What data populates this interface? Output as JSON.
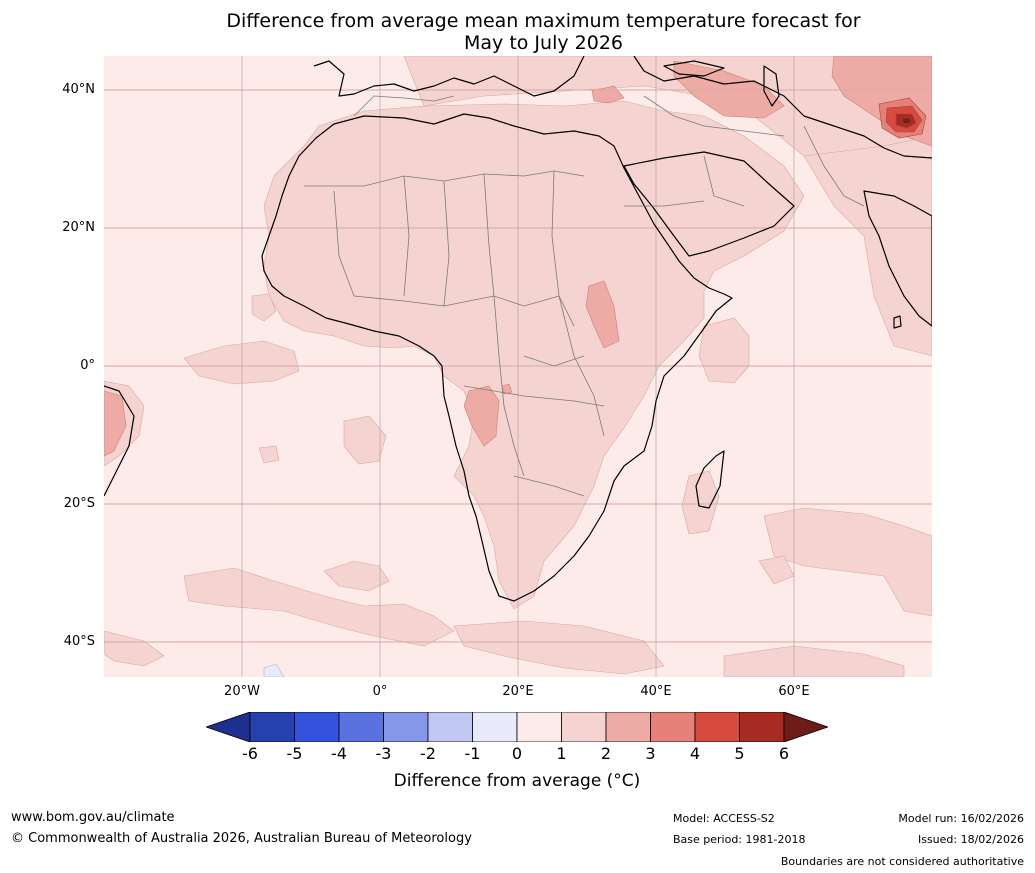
{
  "title": {
    "line1": "Difference from average mean maximum temperature forecast for",
    "line2": "May to July 2026"
  },
  "map": {
    "lat_labels": [
      "40°N",
      "20°N",
      "0°",
      "20°S",
      "40°S"
    ],
    "lon_labels": [
      "20°W",
      "0°",
      "20°E",
      "40°E",
      "60°E"
    ],
    "background_color": "#fcebe8",
    "region": "Africa, Middle East and western Indian Ocean"
  },
  "colorbar": {
    "ticks": [
      "-6",
      "-5",
      "-4",
      "-3",
      "-2",
      "-1",
      "0",
      "1",
      "2",
      "3",
      "4",
      "5",
      "6"
    ],
    "colors": [
      "#1e2f8f",
      "#2740b0",
      "#3353de",
      "#5a72e0",
      "#8797e8",
      "#c1c8f2",
      "#e9ebfa",
      "#fcebe8",
      "#f5d3d0",
      "#eeaba6",
      "#e6817a",
      "#d84a3f",
      "#a82b23",
      "#6e1c17"
    ],
    "label": "Difference from average (°C)"
  },
  "footer": {
    "website": "www.bom.gov.au/climate",
    "copyright": "© Commonwealth of Australia 2026, Australian Bureau of Meteorology",
    "model": "Model: ACCESS-S2",
    "base_period": "Base period: 1981-2018",
    "model_run": "Model run: 16/02/2026",
    "issued": "Issued: 18/02/2026",
    "disclaimer": "Boundaries are not considered authoritative"
  }
}
